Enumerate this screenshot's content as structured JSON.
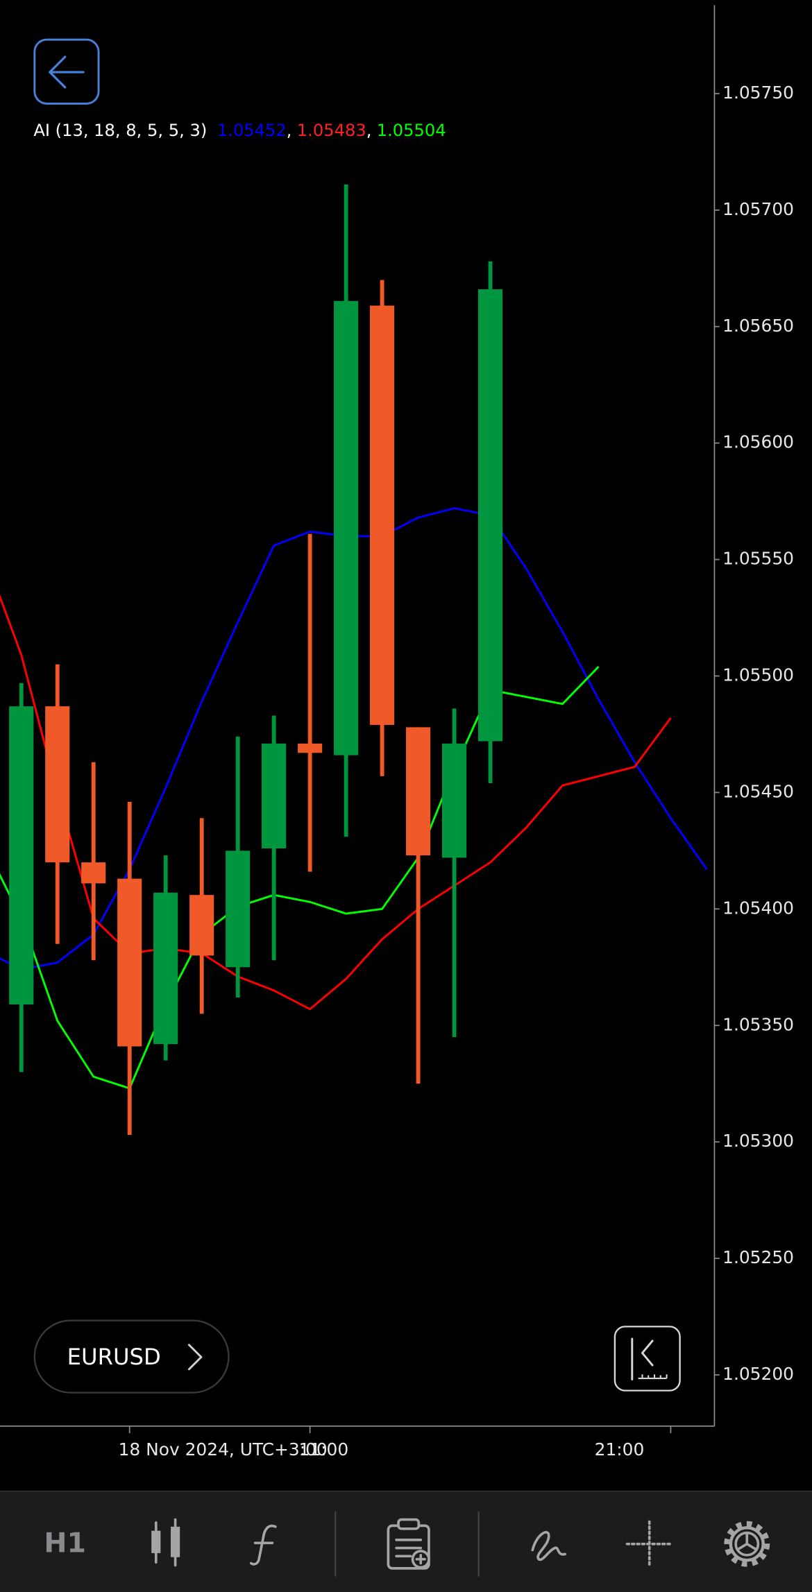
{
  "indicator_legend": {
    "label": "AI (13, 18, 8, 5, 5, 3)",
    "values": [
      1.05452,
      1.05483,
      1.05504
    ],
    "colors": [
      "#0000ff",
      "#ff2020",
      "#00ff00"
    ],
    "separator": ","
  },
  "symbol": "EURUSD",
  "timeframe": "H1",
  "chart_data": {
    "type": "candlestick",
    "categories": [
      null,
      null,
      null,
      null,
      "18 Nov 2024, UTC+3:00",
      null,
      null,
      null,
      null,
      "11:00",
      null,
      null,
      null,
      null,
      null,
      null,
      null,
      null,
      null,
      "21:00",
      null
    ],
    "open": [
      null,
      1.05359,
      1.05487,
      1.0542,
      1.05413,
      1.05342,
      1.05406,
      1.05375,
      1.05426,
      1.05471,
      1.05466,
      1.05659,
      1.05478,
      1.05422,
      1.05472,
      null,
      null,
      null,
      null,
      null,
      null
    ],
    "high": [
      null,
      1.05497,
      1.05505,
      1.05463,
      1.05446,
      1.05423,
      1.05439,
      1.05474,
      1.05483,
      1.05561,
      1.05711,
      1.0567,
      1.05478,
      1.05486,
      1.05678,
      null,
      null,
      null,
      null,
      null,
      null
    ],
    "low": [
      null,
      1.0533,
      1.05385,
      1.05378,
      1.05303,
      1.05335,
      1.05355,
      1.05362,
      1.05378,
      1.05416,
      1.05431,
      1.05457,
      1.05325,
      1.05345,
      1.05454,
      null,
      null,
      null,
      null,
      null,
      null
    ],
    "close": [
      null,
      1.05487,
      1.0542,
      1.05411,
      1.05341,
      1.05407,
      1.0538,
      1.05425,
      1.05471,
      1.05467,
      1.05661,
      1.05479,
      1.05423,
      1.05471,
      1.05666,
      null,
      null,
      null,
      null,
      null,
      null
    ],
    "up_color": "#00963f",
    "down_color": "#f05a28",
    "series": [
      {
        "color": "#0000ff",
        "values": [
          1.05382,
          1.05374,
          1.05377,
          1.05389,
          1.05417,
          1.05452,
          1.05489,
          1.05523,
          1.05556,
          1.05562,
          1.0556,
          1.0556,
          1.05568,
          1.05572,
          1.05569,
          1.05546,
          1.05519,
          1.0549,
          1.05463,
          1.05439,
          1.05417
        ]
      },
      {
        "color": "#ff0000",
        "values": [
          1.05551,
          1.05509,
          1.0545,
          1.05396,
          1.05381,
          1.05383,
          1.05381,
          1.05371,
          1.05365,
          1.05357,
          1.0537,
          1.05387,
          1.054,
          1.0541,
          1.0542,
          1.05435,
          1.05453,
          1.05457,
          1.05461,
          1.05482,
          null
        ]
      },
      {
        "color": "#00ff00",
        "values": [
          1.05427,
          1.05396,
          1.05352,
          1.05328,
          1.05323,
          1.05359,
          1.05389,
          1.05401,
          1.05406,
          1.05403,
          1.05398,
          1.054,
          1.05422,
          1.0546,
          1.05494,
          1.05491,
          1.05488,
          1.05504,
          null,
          null,
          null
        ]
      }
    ],
    "ylim": [
      1.05178,
      1.05788
    ],
    "yticks": [
      {
        "value": 1.052,
        "label": "1.05200"
      },
      {
        "value": 1.0525,
        "label": "1.05250"
      },
      {
        "value": 1.053,
        "label": "1.05300"
      },
      {
        "value": 1.0535,
        "label": "1.05350"
      },
      {
        "value": 1.054,
        "label": "1.05400"
      },
      {
        "value": 1.0545,
        "label": "1.05450"
      },
      {
        "value": 1.055,
        "label": "1.05500"
      },
      {
        "value": 1.0555,
        "label": "1.05550"
      },
      {
        "value": 1.056,
        "label": "1.05600"
      },
      {
        "value": 1.0565,
        "label": "1.05650"
      },
      {
        "value": 1.057,
        "label": "1.05700"
      },
      {
        "value": 1.0575,
        "label": "1.05750"
      }
    ]
  }
}
